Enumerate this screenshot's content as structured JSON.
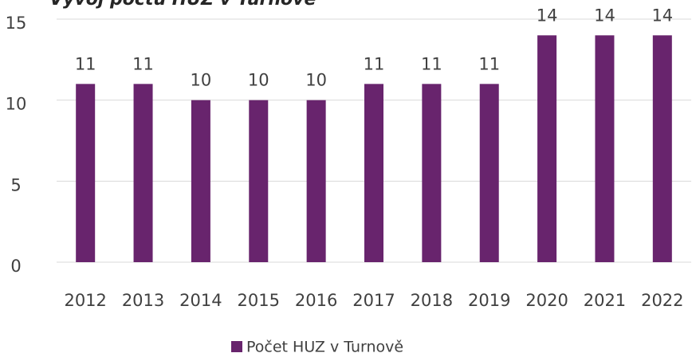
{
  "chart_data": {
    "type": "bar",
    "title": "Vývoj počtu HUZ v Turnově",
    "categories": [
      "2012",
      "2013",
      "2014",
      "2015",
      "2016",
      "2017",
      "2018",
      "2019",
      "2020",
      "2021",
      "2022"
    ],
    "series": [
      {
        "name": "Počet HUZ v Turnově",
        "color": "#68246d",
        "values": [
          11,
          11,
          10,
          10,
          10,
          11,
          11,
          11,
          14,
          14,
          14
        ]
      }
    ],
    "ylim": [
      0,
      15
    ],
    "yticks": [
      0,
      5,
      10,
      15
    ],
    "grid": true,
    "legend": "bottom"
  }
}
